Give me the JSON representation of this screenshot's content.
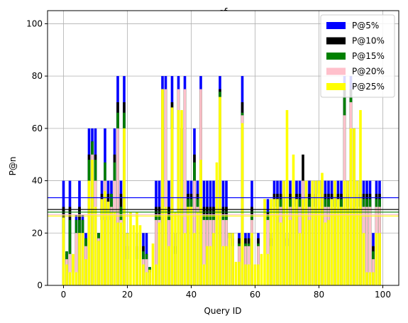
{
  "chart_data": {
    "type": "bar",
    "title": "cf",
    "xlabel": "Query ID",
    "ylabel": "P@n",
    "xlim": [
      -5,
      105
    ],
    "ylim": [
      0,
      105
    ],
    "xticks": [
      0,
      20,
      40,
      60,
      80,
      100
    ],
    "yticks": [
      0,
      20,
      40,
      60,
      80,
      100
    ],
    "grid": true,
    "legend_position": "top-right",
    "x": [
      0,
      1,
      2,
      3,
      4,
      5,
      6,
      7,
      8,
      9,
      10,
      11,
      12,
      13,
      14,
      15,
      16,
      17,
      18,
      19,
      20,
      21,
      22,
      23,
      24,
      25,
      26,
      27,
      28,
      29,
      30,
      31,
      32,
      33,
      34,
      35,
      36,
      37,
      38,
      39,
      40,
      41,
      42,
      43,
      44,
      45,
      46,
      47,
      48,
      49,
      50,
      51,
      52,
      53,
      54,
      55,
      56,
      57,
      58,
      59,
      60,
      61,
      62,
      63,
      64,
      65,
      66,
      67,
      68,
      69,
      70,
      71,
      72,
      73,
      74,
      75,
      76,
      77,
      78,
      79,
      80,
      81,
      82,
      83,
      84,
      85,
      86,
      87,
      88,
      89,
      90,
      91,
      92,
      93,
      94,
      95,
      96,
      97,
      98,
      99
    ],
    "series": [
      {
        "name": "P@5%",
        "color": "#0000ff",
        "values": [
          40,
          13,
          40,
          0,
          27,
          40,
          27,
          20,
          60,
          60,
          60,
          20,
          40,
          60,
          40,
          40,
          60,
          80,
          40,
          80,
          20,
          0,
          0,
          20,
          0,
          20,
          20,
          7,
          0,
          40,
          40,
          80,
          80,
          40,
          80,
          20,
          80,
          60,
          80,
          40,
          40,
          60,
          40,
          80,
          40,
          40,
          40,
          40,
          40,
          80,
          40,
          40,
          20,
          20,
          0,
          20,
          80,
          20,
          20,
          40,
          0,
          20,
          0,
          0,
          33,
          20,
          40,
          40,
          40,
          40,
          20,
          40,
          40,
          40,
          40,
          40,
          40,
          40,
          40,
          40,
          40,
          40,
          40,
          40,
          40,
          40,
          40,
          40,
          80,
          40,
          80,
          60,
          40,
          40,
          40,
          40,
          40,
          20,
          40,
          40
        ]
      },
      {
        "name": "P@10%",
        "color": "#000000",
        "values": [
          30,
          12,
          30,
          0,
          20,
          30,
          25,
          18,
          50,
          55,
          50,
          20,
          35,
          40,
          35,
          35,
          50,
          70,
          35,
          70,
          15,
          0,
          0,
          15,
          0,
          15,
          12,
          6,
          0,
          30,
          30,
          75,
          75,
          30,
          70,
          15,
          75,
          60,
          75,
          35,
          35,
          50,
          35,
          75,
          30,
          30,
          30,
          30,
          30,
          75,
          30,
          30,
          20,
          18,
          0,
          18,
          70,
          18,
          18,
          30,
          0,
          18,
          0,
          0,
          28,
          18,
          35,
          35,
          35,
          35,
          18,
          35,
          35,
          35,
          35,
          50,
          35,
          35,
          35,
          35,
          40,
          35,
          35,
          35,
          35,
          35,
          35,
          35,
          75,
          35,
          75,
          60,
          35,
          35,
          35,
          35,
          35,
          15,
          35,
          35
        ]
      },
      {
        "name": "P@15%",
        "color": "#008000",
        "values": [
          26,
          13,
          25,
          0,
          25,
          25,
          25,
          18,
          48,
          55,
          48,
          20,
          30,
          47,
          30,
          35,
          47,
          66,
          30,
          66,
          13,
          0,
          0,
          13,
          0,
          13,
          12,
          7,
          0,
          27,
          27,
          74,
          74,
          27,
          66,
          15,
          74,
          60,
          74,
          33,
          33,
          47,
          33,
          74,
          27,
          27,
          27,
          27,
          27,
          74,
          27,
          27,
          20,
          16,
          0,
          16,
          66,
          16,
          16,
          27,
          0,
          16,
          0,
          0,
          27,
          16,
          33,
          33,
          33,
          33,
          16,
          33,
          33,
          33,
          33,
          40,
          33,
          33,
          33,
          33,
          38,
          33,
          33,
          33,
          33,
          33,
          33,
          33,
          72,
          33,
          72,
          60,
          33,
          33,
          33,
          33,
          33,
          13,
          33,
          33
        ]
      },
      {
        "name": "P@20%",
        "color": "#ffc0cb",
        "values": [
          20,
          10,
          12,
          0,
          20,
          20,
          20,
          15,
          40,
          50,
          40,
          18,
          25,
          40,
          25,
          30,
          40,
          60,
          25,
          60,
          10,
          0,
          0,
          10,
          0,
          10,
          10,
          5,
          0,
          25,
          25,
          75,
          75,
          25,
          60,
          12,
          75,
          60,
          75,
          30,
          30,
          40,
          30,
          75,
          25,
          25,
          25,
          25,
          25,
          72,
          25,
          25,
          18,
          15,
          0,
          15,
          65,
          15,
          15,
          25,
          0,
          15,
          0,
          0,
          25,
          15,
          30,
          30,
          30,
          30,
          15,
          30,
          30,
          30,
          30,
          40,
          30,
          30,
          30,
          30,
          35,
          30,
          30,
          30,
          30,
          30,
          30,
          30,
          65,
          30,
          70,
          60,
          30,
          30,
          30,
          30,
          30,
          10,
          30,
          30
        ]
      },
      {
        "name": "P@25%",
        "color": "#ffff00",
        "values": [
          26,
          8,
          5,
          12,
          5,
          20,
          20,
          10,
          40,
          48,
          30,
          17,
          33,
          36,
          32,
          28,
          28,
          24,
          24,
          60,
          20,
          28,
          23,
          28,
          23,
          8,
          5,
          6,
          16,
          8,
          24,
          75,
          30,
          15,
          68,
          28,
          67,
          67,
          20,
          30,
          30,
          20,
          28,
          48,
          8,
          15,
          15,
          20,
          47,
          72,
          15,
          15,
          20,
          20,
          9,
          9,
          62,
          8,
          8,
          20,
          8,
          8,
          12,
          33,
          12,
          33,
          33,
          33,
          24,
          40,
          67,
          25,
          50,
          33,
          20,
          33,
          40,
          25,
          40,
          40,
          40,
          43,
          24,
          25,
          33,
          40,
          33,
          30,
          40,
          40,
          60,
          60,
          40,
          67,
          20,
          5,
          5,
          5,
          20,
          20
        ]
      }
    ],
    "horizontal_lines": [
      {
        "series": "P@5%",
        "color": "#0000ff",
        "y": 33.5
      },
      {
        "series": "P@10%",
        "color": "#000000",
        "y": 29.0
      },
      {
        "series": "P@15%",
        "color": "#008000",
        "y": 28.0
      },
      {
        "series": "P@20%",
        "color": "#ffc0cb",
        "y": 27.0
      },
      {
        "series": "P@25%",
        "color": "#ffff00",
        "y": 26.5
      }
    ]
  }
}
